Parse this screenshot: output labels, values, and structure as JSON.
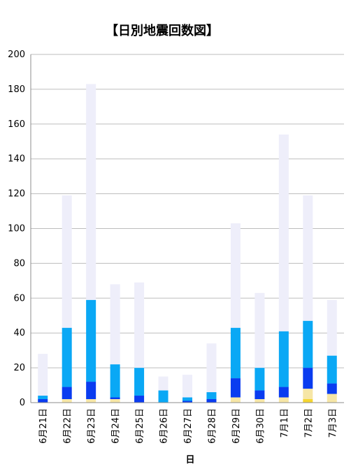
{
  "chart_data": {
    "type": "bar",
    "stacked": true,
    "title": "【日別地震回数図】",
    "xlabel": "日",
    "ylabel": "",
    "ylim": [
      0,
      200
    ],
    "yticks": [
      0,
      20,
      40,
      60,
      80,
      100,
      120,
      140,
      160,
      180,
      200
    ],
    "grid": true,
    "legend": "none",
    "categories": [
      "6月21日",
      "6月22日",
      "6月23日",
      "6月24日",
      "6月25日",
      "6月26日",
      "6月27日",
      "6月28日",
      "6月29日",
      "6月30日",
      "7月1日",
      "7月2日",
      "7月3日"
    ],
    "series": [
      {
        "color": "#f5d630",
        "values": [
          0,
          0,
          0,
          0,
          0,
          0,
          0,
          0,
          0,
          0,
          0,
          2,
          0
        ]
      },
      {
        "color": "#f6e6a6",
        "values": [
          0,
          2,
          2,
          2,
          0,
          0,
          0,
          0,
          3,
          2,
          3,
          6,
          5
        ]
      },
      {
        "color": "#0a3cf0",
        "values": [
          2,
          7,
          10,
          1,
          4,
          0,
          1,
          2,
          11,
          5,
          6,
          12,
          6
        ]
      },
      {
        "color": "#0aa8f5",
        "values": [
          2,
          34,
          47,
          19,
          16,
          7,
          2,
          4,
          29,
          13,
          32,
          27,
          16
        ]
      },
      {
        "color": "#eeeefa",
        "values": [
          24,
          76,
          124,
          46,
          49,
          8,
          13,
          28,
          60,
          43,
          113,
          72,
          32
        ]
      }
    ]
  }
}
